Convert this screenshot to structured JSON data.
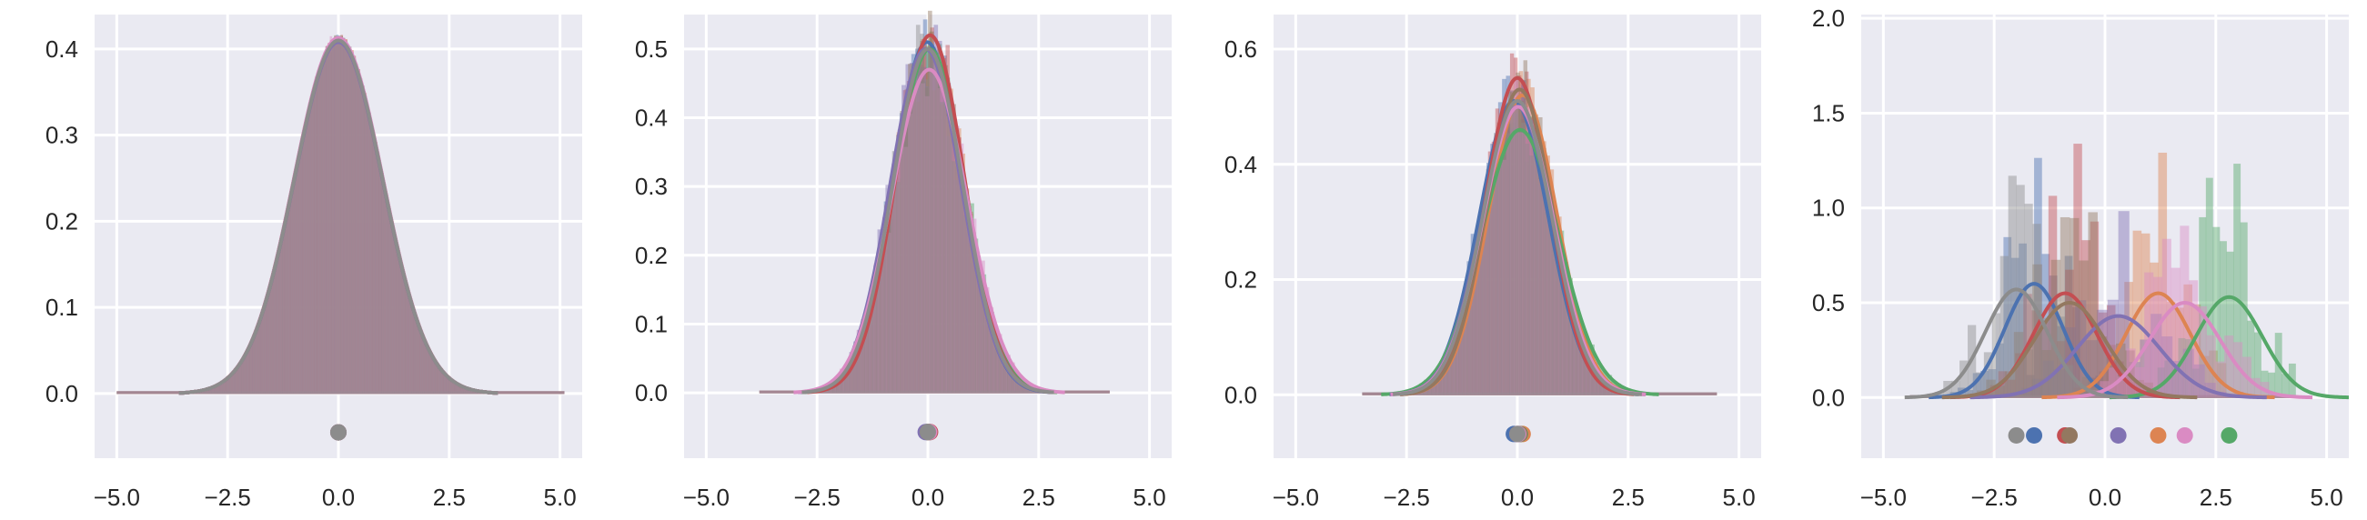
{
  "colors": {
    "background": "#eaeaf2",
    "grid": "#ffffff",
    "text": "#262626",
    "palette": [
      "#4c72b0",
      "#dd8452",
      "#55a868",
      "#c44e52",
      "#8172b3",
      "#937860",
      "#da8bc3",
      "#8c8c8c"
    ]
  },
  "chart_data": [
    {
      "type": "area",
      "xlim": [
        -5.5,
        5.5
      ],
      "ylim": [
        -0.075,
        0.44
      ],
      "x_ticks": [
        -5.0,
        -2.5,
        0.0,
        2.5,
        5.0
      ],
      "x_tick_labels": [
        "−5.0",
        "−2.5",
        "0.0",
        "2.5",
        "5.0"
      ],
      "y_ticks": [
        0.0,
        0.1,
        0.2,
        0.3,
        0.4
      ],
      "y_tick_labels": [
        "0.0",
        "0.1",
        "0.2",
        "0.3",
        "0.4"
      ],
      "grid": true,
      "distributions": [
        {
          "color": "#4c72b0",
          "mean": 0.0,
          "sd": 1.0,
          "kde_peak": 0.41
        },
        {
          "color": "#dd8452",
          "mean": 0.0,
          "sd": 1.0,
          "kde_peak": 0.412
        },
        {
          "color": "#55a868",
          "mean": 0.0,
          "sd": 1.0,
          "kde_peak": 0.409
        },
        {
          "color": "#c44e52",
          "mean": 0.0,
          "sd": 1.0,
          "kde_peak": 0.411
        },
        {
          "color": "#8172b3",
          "mean": 0.0,
          "sd": 1.0,
          "kde_peak": 0.408
        },
        {
          "color": "#937860",
          "mean": 0.0,
          "sd": 1.0,
          "kde_peak": 0.41
        },
        {
          "color": "#da8bc3",
          "mean": 0.0,
          "sd": 1.0,
          "kde_peak": 0.413
        },
        {
          "color": "#8c8c8c",
          "mean": 0.0,
          "sd": 1.0,
          "kde_peak": 0.41
        }
      ],
      "hist_range": [
        -5.0,
        5.1
      ],
      "mean_markers_y": -0.045
    },
    {
      "type": "area",
      "xlim": [
        -5.5,
        5.5
      ],
      "ylim": [
        -0.095,
        0.55
      ],
      "x_ticks": [
        -5.0,
        -2.5,
        0.0,
        2.5,
        5.0
      ],
      "x_tick_labels": [
        "−5.0",
        "−2.5",
        "0.0",
        "2.5",
        "5.0"
      ],
      "y_ticks": [
        0.0,
        0.1,
        0.2,
        0.3,
        0.4,
        0.5
      ],
      "y_tick_labels": [
        "0.0",
        "0.1",
        "0.2",
        "0.3",
        "0.4",
        "0.5"
      ],
      "grid": true,
      "distributions": [
        {
          "color": "#4c72b0",
          "mean": -0.02,
          "sd": 0.78,
          "kde_peak": 0.51
        },
        {
          "color": "#dd8452",
          "mean": 0.02,
          "sd": 0.8,
          "kde_peak": 0.5
        },
        {
          "color": "#55a868",
          "mean": 0.04,
          "sd": 0.8,
          "kde_peak": 0.5
        },
        {
          "color": "#c44e52",
          "mean": 0.05,
          "sd": 0.77,
          "kde_peak": 0.52
        },
        {
          "color": "#8172b3",
          "mean": -0.05,
          "sd": 0.8,
          "kde_peak": 0.5
        },
        {
          "color": "#937860",
          "mean": 0.0,
          "sd": 0.79,
          "kde_peak": 0.5
        },
        {
          "color": "#da8bc3",
          "mean": 0.03,
          "sd": 0.85,
          "kde_peak": 0.47
        },
        {
          "color": "#8c8c8c",
          "mean": 0.0,
          "sd": 0.79,
          "kde_peak": 0.5
        }
      ],
      "hist_range": [
        -3.8,
        4.1
      ],
      "mean_markers_y": -0.057
    },
    {
      "type": "area",
      "xlim": [
        -5.5,
        5.5
      ],
      "ylim": [
        -0.11,
        0.66
      ],
      "x_ticks": [
        -5.0,
        -2.5,
        0.0,
        2.5,
        5.0
      ],
      "x_tick_labels": [
        "−5.0",
        "−2.5",
        "0.0",
        "2.5",
        "5.0"
      ],
      "y_ticks": [
        0.0,
        0.2,
        0.4,
        0.6
      ],
      "y_tick_labels": [
        "0.0",
        "0.2",
        "0.4",
        "0.6"
      ],
      "grid": true,
      "distributions": [
        {
          "color": "#4c72b0",
          "mean": -0.08,
          "sd": 0.78,
          "kde_peak": 0.51
        },
        {
          "color": "#dd8452",
          "mean": 0.12,
          "sd": 0.77,
          "kde_peak": 0.52
        },
        {
          "color": "#55a868",
          "mean": 0.06,
          "sd": 0.87,
          "kde_peak": 0.46
        },
        {
          "color": "#c44e52",
          "mean": 0.0,
          "sd": 0.73,
          "kde_peak": 0.55
        },
        {
          "color": "#8172b3",
          "mean": 0.0,
          "sd": 0.8,
          "kde_peak": 0.5
        },
        {
          "color": "#937860",
          "mean": 0.05,
          "sd": 0.75,
          "kde_peak": 0.53
        },
        {
          "color": "#da8bc3",
          "mean": 0.02,
          "sd": 0.8,
          "kde_peak": 0.5
        },
        {
          "color": "#8c8c8c",
          "mean": 0.0,
          "sd": 0.78,
          "kde_peak": 0.51
        }
      ],
      "hist_range": [
        -3.5,
        4.5
      ],
      "mean_markers_y": -0.068
    },
    {
      "type": "area",
      "xlim": [
        -5.5,
        5.5
      ],
      "ylim": [
        -0.32,
        2.02
      ],
      "x_ticks": [
        -5.0,
        -2.5,
        0.0,
        2.5,
        5.0
      ],
      "x_tick_labels": [
        "−5.0",
        "−2.5",
        "0.0",
        "2.5",
        "5.0"
      ],
      "y_ticks": [
        0.0,
        0.5,
        1.0,
        1.5,
        2.0
      ],
      "y_tick_labels": [
        "0.0",
        "0.5",
        "1.0",
        "1.5",
        "2.0"
      ],
      "grid": true,
      "distributions": [
        {
          "color": "#4c72b0",
          "mean": -1.6,
          "sd": 0.66,
          "kde_peak": 0.6
        },
        {
          "color": "#dd8452",
          "mean": 1.2,
          "sd": 0.73,
          "kde_peak": 0.55
        },
        {
          "color": "#55a868",
          "mean": 2.8,
          "sd": 0.75,
          "kde_peak": 0.53
        },
        {
          "color": "#c44e52",
          "mean": -0.9,
          "sd": 0.72,
          "kde_peak": 0.55
        },
        {
          "color": "#8172b3",
          "mean": 0.3,
          "sd": 0.93,
          "kde_peak": 0.43
        },
        {
          "color": "#937860",
          "mean": -0.8,
          "sd": 0.8,
          "kde_peak": 0.5
        },
        {
          "color": "#da8bc3",
          "mean": 1.8,
          "sd": 0.8,
          "kde_peak": 0.5
        },
        {
          "color": "#8c8c8c",
          "mean": -2.0,
          "sd": 0.7,
          "kde_peak": 0.57
        }
      ],
      "hist_range": [
        -4.4,
        4.3
      ],
      "mean_markers_y": -0.2
    }
  ]
}
